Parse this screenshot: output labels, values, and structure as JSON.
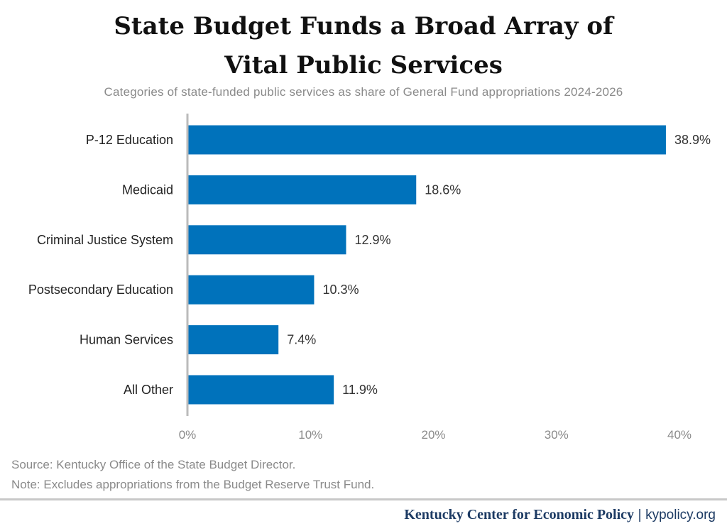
{
  "chart_data": {
    "type": "bar",
    "orientation": "horizontal",
    "title": "State Budget Funds a Broad Array of Vital Public Services",
    "subtitle": "Categories of state-funded public services as share of General Fund appropriations 2024-2026",
    "categories": [
      "P-12 Education",
      "Medicaid",
      "Criminal Justice System",
      "Postsecondary Education",
      "Human Services",
      "All Other"
    ],
    "values": [
      38.9,
      18.6,
      12.9,
      10.3,
      7.4,
      11.9
    ],
    "data_labels": [
      "38.9%",
      "18.6%",
      "12.9%",
      "10.3%",
      "7.4%",
      "11.9%"
    ],
    "xlim": [
      0,
      40
    ],
    "xticks": [
      0,
      10,
      20,
      30,
      40
    ],
    "xtick_labels": [
      "0%",
      "10%",
      "20%",
      "30%",
      "40%"
    ],
    "grid": false,
    "bar_color": "#0072bb"
  },
  "source": "Source: Kentucky Office of the State Budget Director.",
  "note": "Note: Excludes appropriations from the Budget Reserve Trust Fund.",
  "footer": {
    "org": "Kentucky Center for Economic Policy",
    "separator": "|",
    "url": "kypolicy.org"
  }
}
